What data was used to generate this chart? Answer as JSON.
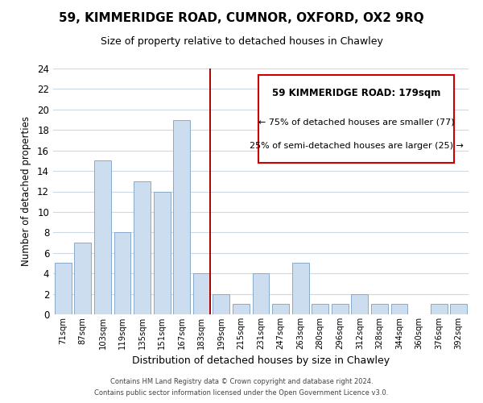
{
  "title": "59, KIMMERIDGE ROAD, CUMNOR, OXFORD, OX2 9RQ",
  "subtitle": "Size of property relative to detached houses in Chawley",
  "xlabel": "Distribution of detached houses by size in Chawley",
  "ylabel": "Number of detached properties",
  "bar_color": "#ccddef",
  "bar_edge_color": "#88aacb",
  "categories": [
    "71sqm",
    "87sqm",
    "103sqm",
    "119sqm",
    "135sqm",
    "151sqm",
    "167sqm",
    "183sqm",
    "199sqm",
    "215sqm",
    "231sqm",
    "247sqm",
    "263sqm",
    "280sqm",
    "296sqm",
    "312sqm",
    "328sqm",
    "344sqm",
    "360sqm",
    "376sqm",
    "392sqm"
  ],
  "values": [
    5,
    7,
    15,
    8,
    13,
    12,
    19,
    4,
    2,
    1,
    4,
    1,
    5,
    1,
    1,
    2,
    1,
    1,
    0,
    1,
    1
  ],
  "ylim": [
    0,
    24
  ],
  "yticks": [
    0,
    2,
    4,
    6,
    8,
    10,
    12,
    14,
    16,
    18,
    20,
    22,
    24
  ],
  "vline_index": 7,
  "vline_color": "#aa0000",
  "annotation_title": "59 KIMMERIDGE ROAD: 179sqm",
  "annotation_line1": "← 75% of detached houses are smaller (77)",
  "annotation_line2": "25% of semi-detached houses are larger (25) →",
  "box_facecolor": "#ffffff",
  "box_edgecolor": "#cc0000",
  "footer1": "Contains HM Land Registry data © Crown copyright and database right 2024.",
  "footer2": "Contains public sector information licensed under the Open Government Licence v3.0.",
  "background_color": "#ffffff",
  "grid_color": "#ccd8e4"
}
